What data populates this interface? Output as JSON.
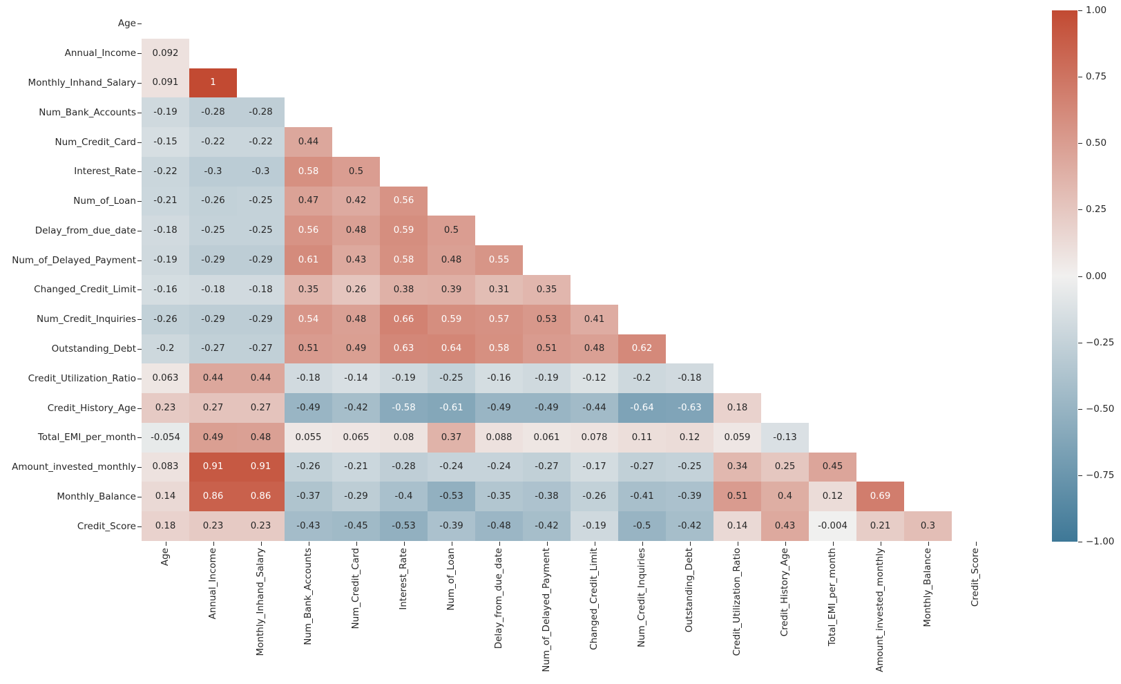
{
  "chart_data": {
    "type": "heatmap",
    "title": "",
    "mask": "upper-triangle-and-diagonal",
    "value_range": [
      -1,
      1
    ],
    "grid": false,
    "variables": [
      "Age",
      "Annual_Income",
      "Monthly_Inhand_Salary",
      "Num_Bank_Accounts",
      "Num_Credit_Card",
      "Interest_Rate",
      "Num_of_Loan",
      "Delay_from_due_date",
      "Num_of_Delayed_Payment",
      "Changed_Credit_Limit",
      "Num_Credit_Inquiries",
      "Outstanding_Debt",
      "Credit_Utilization_Ratio",
      "Credit_History_Age",
      "Total_EMI_per_month",
      "Amount_invested_monthly",
      "Monthly_Balance",
      "Credit_Score"
    ],
    "series": [
      {
        "name": "Age",
        "values": []
      },
      {
        "name": "Annual_Income",
        "values": [
          0.092
        ]
      },
      {
        "name": "Monthly_Inhand_Salary",
        "values": [
          0.091,
          1
        ]
      },
      {
        "name": "Num_Bank_Accounts",
        "values": [
          -0.19,
          -0.28,
          -0.28
        ]
      },
      {
        "name": "Num_Credit_Card",
        "values": [
          -0.15,
          -0.22,
          -0.22,
          0.44
        ]
      },
      {
        "name": "Interest_Rate",
        "values": [
          -0.22,
          -0.3,
          -0.3,
          0.58,
          0.5
        ]
      },
      {
        "name": "Num_of_Loan",
        "values": [
          -0.21,
          -0.26,
          -0.25,
          0.47,
          0.42,
          0.56
        ]
      },
      {
        "name": "Delay_from_due_date",
        "values": [
          -0.18,
          -0.25,
          -0.25,
          0.56,
          0.48,
          0.59,
          0.5
        ]
      },
      {
        "name": "Num_of_Delayed_Payment",
        "values": [
          -0.19,
          -0.29,
          -0.29,
          0.61,
          0.43,
          0.58,
          0.48,
          0.55
        ]
      },
      {
        "name": "Changed_Credit_Limit",
        "values": [
          -0.16,
          -0.18,
          -0.18,
          0.35,
          0.26,
          0.38,
          0.39,
          0.31,
          0.35
        ]
      },
      {
        "name": "Num_Credit_Inquiries",
        "values": [
          -0.26,
          -0.29,
          -0.29,
          0.54,
          0.48,
          0.66,
          0.59,
          0.57,
          0.53,
          0.41
        ]
      },
      {
        "name": "Outstanding_Debt",
        "values": [
          -0.2,
          -0.27,
          -0.27,
          0.51,
          0.49,
          0.63,
          0.64,
          0.58,
          0.51,
          0.48,
          0.62
        ]
      },
      {
        "name": "Credit_Utilization_Ratio",
        "values": [
          0.063,
          0.44,
          0.44,
          -0.18,
          -0.14,
          -0.19,
          -0.25,
          -0.16,
          -0.19,
          -0.12,
          -0.2,
          -0.18
        ]
      },
      {
        "name": "Credit_History_Age",
        "values": [
          0.23,
          0.27,
          0.27,
          -0.49,
          -0.42,
          -0.58,
          -0.61,
          -0.49,
          -0.49,
          -0.44,
          -0.64,
          -0.63,
          0.18
        ]
      },
      {
        "name": "Total_EMI_per_month",
        "values": [
          -0.054,
          0.49,
          0.48,
          0.055,
          0.065,
          0.08,
          0.37,
          0.088,
          0.061,
          0.078,
          0.11,
          0.12,
          0.059,
          -0.13
        ]
      },
      {
        "name": "Amount_invested_monthly",
        "values": [
          0.083,
          0.91,
          0.91,
          -0.26,
          -0.21,
          -0.28,
          -0.24,
          -0.24,
          -0.27,
          -0.17,
          -0.27,
          -0.25,
          0.34,
          0.25,
          0.45
        ]
      },
      {
        "name": "Monthly_Balance",
        "values": [
          0.14,
          0.86,
          0.86,
          -0.37,
          -0.29,
          -0.4,
          -0.53,
          -0.35,
          -0.38,
          -0.26,
          -0.41,
          -0.39,
          0.51,
          0.4,
          0.12,
          0.69
        ]
      },
      {
        "name": "Credit_Score",
        "values": [
          0.18,
          0.23,
          0.23,
          -0.43,
          -0.45,
          -0.53,
          -0.39,
          -0.48,
          -0.42,
          -0.19,
          -0.5,
          -0.42,
          0.14,
          0.43,
          -0.004,
          0.21,
          0.3
        ]
      }
    ],
    "colorbar": {
      "position": "right",
      "tick_labels": [
        "1.00",
        "0.75",
        "0.50",
        "0.25",
        "0.00",
        "−0.25",
        "−0.50",
        "−0.75",
        "−1.00"
      ],
      "tick_values": [
        1.0,
        0.75,
        0.5,
        0.25,
        0.0,
        -0.25,
        -0.5,
        -0.75,
        -1.0
      ],
      "max_color": "#c24a32",
      "mid_color": "#f1f0ef",
      "min_color": "#3e7897"
    },
    "annotation_dark_text_color": "#262626",
    "annotation_light_text_color": "#ffffff",
    "white_text_abs_threshold": 0.54
  }
}
